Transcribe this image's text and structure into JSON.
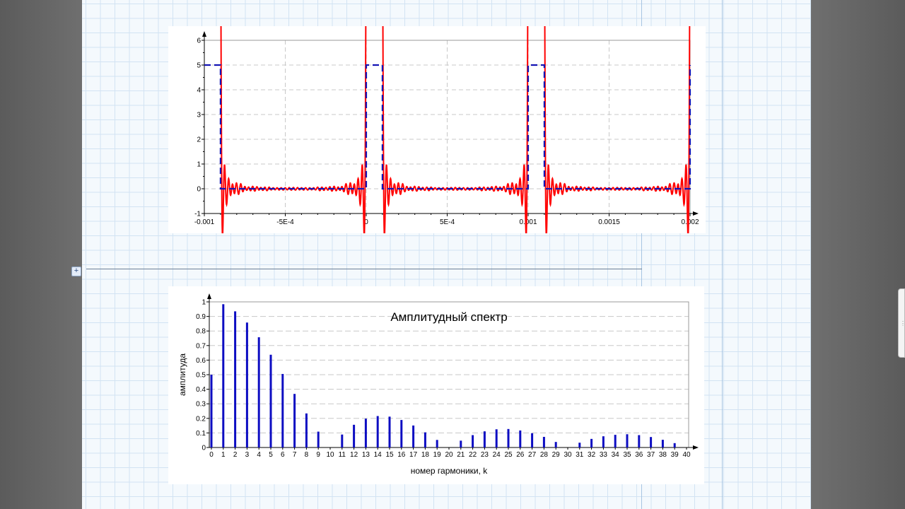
{
  "colors": {
    "fourier_curve": "#ff0000",
    "pulse_signal": "#1414b4",
    "spectrum_bars": "#0d0dc2"
  },
  "chart_data": [
    {
      "type": "line",
      "title": "",
      "xlabel": "",
      "ylabel": "",
      "xlim": [
        -0.001,
        0.002
      ],
      "ylim": [
        -1,
        6
      ],
      "x_ticks": [
        -0.001,
        -0.0005,
        0,
        0.0005,
        0.001,
        0.0015,
        0.002
      ],
      "x_tick_labels": [
        "-0.001",
        "-5E-4",
        "0",
        "5E-4",
        "0.001",
        "0.0015",
        "0.002"
      ],
      "y_ticks": [
        -1,
        0,
        1,
        2,
        3,
        4,
        5,
        6
      ],
      "y_tick_labels": [
        "-1",
        "0",
        "1",
        "2",
        "3",
        "4",
        "5",
        "6"
      ],
      "grid": true,
      "period": 0.001,
      "amplitude": 5,
      "pulse_width": 0.0001,
      "series": [
        {
          "style": "dashed",
          "color": "#1414b4",
          "pulses": [
            [
              -0.001,
              -0.0009
            ],
            [
              0,
              0.0001
            ],
            [
              0.001,
              0.0011
            ],
            [
              0.002,
              0.002
            ]
          ]
        },
        {
          "style": "solid",
          "color": "#ff0000",
          "harmonics_a0": 0.5,
          "harmonics_ak": [
            0.984,
            0.935,
            0.858,
            0.757,
            0.637,
            0.505,
            0.368,
            0.234,
            0.109,
            0.0,
            -0.089,
            -0.156,
            -0.198,
            -0.216,
            -0.212,
            -0.189,
            -0.151,
            -0.104,
            -0.052,
            0.0,
            0.047,
            0.085,
            0.111,
            0.125,
            0.127,
            0.117,
            0.098,
            0.073,
            0.038,
            0.0,
            -0.033,
            -0.059,
            -0.077,
            -0.087,
            -0.091,
            -0.085,
            -0.072,
            -0.053,
            -0.03
          ]
        }
      ]
    },
    {
      "type": "bar",
      "title": "Амплитудный спектр",
      "xlabel": "номер гармоники, k",
      "ylabel": "амплитуда",
      "ylim": [
        0,
        1
      ],
      "y_ticks": [
        0,
        0.1,
        0.2,
        0.3,
        0.4,
        0.5,
        0.6,
        0.7,
        0.8,
        0.9,
        1
      ],
      "y_tick_labels": [
        "0",
        "0.1",
        "0.2",
        "0.3",
        "0.4",
        "0.5",
        "0.6",
        "0.7",
        "0.8",
        "0.9",
        "1"
      ],
      "grid": true,
      "categories": [
        "0",
        "1",
        "2",
        "3",
        "4",
        "5",
        "6",
        "7",
        "8",
        "9",
        "10",
        "11",
        "12",
        "13",
        "14",
        "15",
        "16",
        "17",
        "18",
        "19",
        "20",
        "21",
        "22",
        "23",
        "24",
        "25",
        "26",
        "27",
        "28",
        "29",
        "30",
        "31",
        "32",
        "33",
        "34",
        "35",
        "36",
        "37",
        "38",
        "39",
        "40"
      ],
      "values": [
        0.5,
        0.984,
        0.935,
        0.858,
        0.757,
        0.637,
        0.505,
        0.368,
        0.234,
        0.109,
        0.0,
        0.089,
        0.156,
        0.198,
        0.216,
        0.212,
        0.189,
        0.151,
        0.104,
        0.052,
        0.0,
        0.047,
        0.085,
        0.111,
        0.125,
        0.127,
        0.117,
        0.098,
        0.073,
        0.038,
        0.0,
        0.033,
        0.059,
        0.077,
        0.087,
        0.091,
        0.085,
        0.072,
        0.053,
        0.03,
        0.0
      ]
    }
  ]
}
